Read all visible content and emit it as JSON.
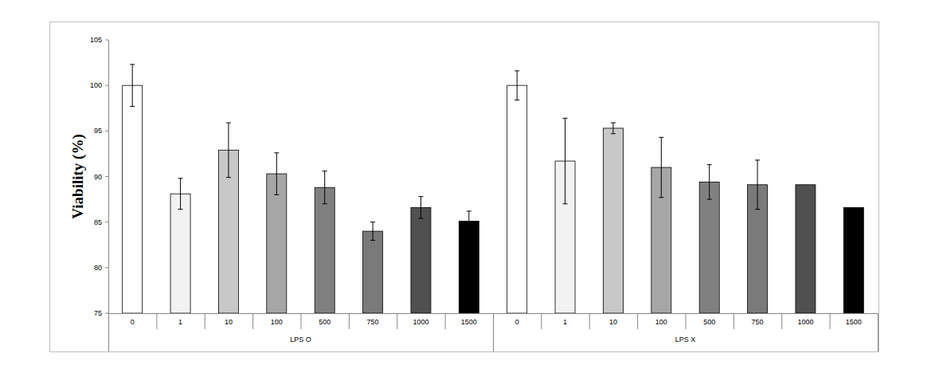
{
  "chart_data": {
    "type": "bar",
    "y_label": "Viability (%)",
    "categories": [
      "0",
      "1",
      "10",
      "100",
      "500",
      "750",
      "1000",
      "1500"
    ],
    "colors": [
      "#ffffff",
      "#f2f2f2",
      "#c8c8c8",
      "#a6a6a6",
      "#808080",
      "#7a7a7a",
      "#505050",
      "#000000"
    ],
    "series": [
      {
        "name": "LPS O",
        "values": [
          100,
          88.1,
          92.9,
          90.3,
          88.8,
          84.0,
          86.6,
          85.1
        ],
        "errors": [
          2.3,
          1.7,
          3.0,
          2.3,
          1.8,
          1.0,
          1.2,
          1.1
        ]
      },
      {
        "name": "LPS X",
        "values": [
          100,
          91.7,
          95.3,
          91.0,
          89.4,
          89.1,
          89.1,
          86.6
        ],
        "errors": [
          1.6,
          4.7,
          0.6,
          3.3,
          1.9,
          2.7,
          null,
          null
        ]
      }
    ],
    "ylim": [
      75,
      105
    ],
    "yticks": [
      75,
      80,
      85,
      90,
      95,
      100,
      105
    ],
    "grid": false
  }
}
